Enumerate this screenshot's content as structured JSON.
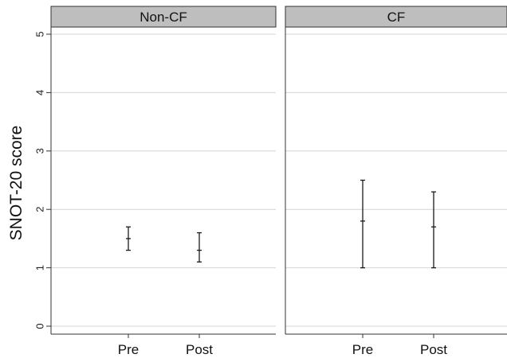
{
  "chart_data": {
    "type": "errorbar",
    "ylabel": "SNOT-20 score",
    "ylim": [
      0,
      5
    ],
    "yticks": [
      "0",
      "1",
      "2",
      "3",
      "4",
      "5"
    ],
    "grid": true,
    "categories": [
      "Pre",
      "Post"
    ],
    "panels": [
      {
        "title": "Non-CF",
        "points": [
          {
            "x": "Pre",
            "mean": 1.5,
            "lower": 1.3,
            "upper": 1.7
          },
          {
            "x": "Post",
            "mean": 1.3,
            "lower": 1.1,
            "upper": 1.6
          }
        ]
      },
      {
        "title": "CF",
        "points": [
          {
            "x": "Pre",
            "mean": 1.8,
            "lower": 1.0,
            "upper": 2.5
          },
          {
            "x": "Post",
            "mean": 1.7,
            "lower": 1.0,
            "upper": 2.3
          }
        ]
      }
    ],
    "colors": {
      "strip_fill": "#bebebe",
      "grid": "#d4d4d4",
      "marks": "#1a1a1a",
      "axis": "#333333"
    }
  }
}
